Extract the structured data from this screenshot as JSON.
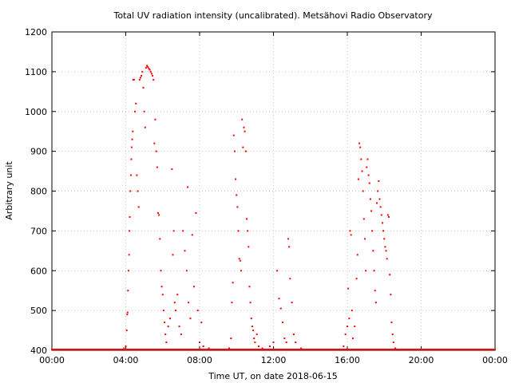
{
  "chart_data": {
    "type": "scatter",
    "title": "Total UV radiation intensity (uncalibrated). Metsähovi Radio Observatory",
    "xlabel": "Time UT, on date 2018-06-15",
    "ylabel": "Arbitrary unit",
    "xlim": [
      0,
      24
    ],
    "ylim": [
      400,
      1200
    ],
    "grid": true,
    "marker_color": "#ff0000",
    "x_ticks": [
      {
        "value": 0,
        "label": "00:00"
      },
      {
        "value": 4,
        "label": "04:00"
      },
      {
        "value": 8,
        "label": "08:00"
      },
      {
        "value": 12,
        "label": "12:00"
      },
      {
        "value": 16,
        "label": "16:00"
      },
      {
        "value": 20,
        "label": "20:00"
      },
      {
        "value": 24,
        "label": "00:00"
      }
    ],
    "y_ticks": [
      {
        "value": 400,
        "label": "400"
      },
      {
        "value": 500,
        "label": "500"
      },
      {
        "value": 600,
        "label": "600"
      },
      {
        "value": 700,
        "label": "700"
      },
      {
        "value": 800,
        "label": "800"
      },
      {
        "value": 900,
        "label": "900"
      },
      {
        "value": 1000,
        "label": "1000"
      },
      {
        "value": 1100,
        "label": "1100"
      },
      {
        "value": 1200,
        "label": "1200"
      }
    ],
    "series": [
      {
        "points": [
          [
            0.0,
            400
          ],
          [
            0.5,
            400
          ],
          [
            1.0,
            400
          ],
          [
            1.5,
            400
          ],
          [
            2.0,
            400
          ],
          [
            2.5,
            400
          ],
          [
            3.0,
            400
          ],
          [
            3.5,
            400
          ],
          [
            3.8,
            402
          ],
          [
            3.9,
            405
          ],
          [
            4.0,
            410
          ],
          [
            4.05,
            450
          ],
          [
            4.08,
            490
          ],
          [
            4.1,
            495
          ],
          [
            4.12,
            550
          ],
          [
            4.15,
            600
          ],
          [
            4.18,
            640
          ],
          [
            4.2,
            700
          ],
          [
            4.22,
            735
          ],
          [
            4.25,
            800
          ],
          [
            4.28,
            840
          ],
          [
            4.3,
            880
          ],
          [
            4.32,
            910
          ],
          [
            4.35,
            930
          ],
          [
            4.38,
            950
          ],
          [
            4.4,
            1080
          ],
          [
            4.45,
            1080
          ],
          [
            4.5,
            1000
          ],
          [
            4.55,
            1020
          ],
          [
            4.6,
            840
          ],
          [
            4.65,
            800
          ],
          [
            4.7,
            760
          ],
          [
            4.75,
            1080
          ],
          [
            4.8,
            1085
          ],
          [
            4.85,
            1090
          ],
          [
            4.9,
            1100
          ],
          [
            4.95,
            1060
          ],
          [
            5.0,
            1000
          ],
          [
            5.05,
            960
          ],
          [
            5.1,
            1110
          ],
          [
            5.15,
            1115
          ],
          [
            5.2,
            1112
          ],
          [
            5.25,
            1108
          ],
          [
            5.3,
            1105
          ],
          [
            5.35,
            1100
          ],
          [
            5.4,
            1095
          ],
          [
            5.45,
            1090
          ],
          [
            5.5,
            1080
          ],
          [
            5.55,
            920
          ],
          [
            5.6,
            980
          ],
          [
            5.65,
            900
          ],
          [
            5.7,
            860
          ],
          [
            5.75,
            745
          ],
          [
            5.8,
            740
          ],
          [
            5.85,
            680
          ],
          [
            5.9,
            600
          ],
          [
            5.95,
            560
          ],
          [
            6.0,
            540
          ],
          [
            6.05,
            500
          ],
          [
            6.1,
            470
          ],
          [
            6.15,
            440
          ],
          [
            6.2,
            420
          ],
          [
            6.3,
            460
          ],
          [
            6.4,
            480
          ],
          [
            6.5,
            855
          ],
          [
            6.55,
            640
          ],
          [
            6.6,
            700
          ],
          [
            6.65,
            520
          ],
          [
            6.7,
            500
          ],
          [
            6.8,
            540
          ],
          [
            6.9,
            460
          ],
          [
            7.0,
            440
          ],
          [
            7.1,
            700
          ],
          [
            7.2,
            650
          ],
          [
            7.3,
            600
          ],
          [
            7.35,
            810
          ],
          [
            7.4,
            520
          ],
          [
            7.5,
            480
          ],
          [
            7.6,
            690
          ],
          [
            7.7,
            560
          ],
          [
            7.8,
            745
          ],
          [
            7.9,
            500
          ],
          [
            8.0,
            420
          ],
          [
            8.1,
            470
          ],
          [
            8.2,
            410
          ],
          [
            8.5,
            405
          ],
          [
            8.8,
            402
          ],
          [
            9.0,
            400
          ],
          [
            9.5,
            400
          ],
          [
            9.6,
            405
          ],
          [
            9.7,
            430
          ],
          [
            9.75,
            520
          ],
          [
            9.8,
            570
          ],
          [
            9.85,
            940
          ],
          [
            9.9,
            900
          ],
          [
            9.95,
            830
          ],
          [
            10.0,
            790
          ],
          [
            10.05,
            760
          ],
          [
            10.1,
            700
          ],
          [
            10.15,
            630
          ],
          [
            10.2,
            625
          ],
          [
            10.25,
            600
          ],
          [
            10.3,
            980
          ],
          [
            10.35,
            910
          ],
          [
            10.4,
            960
          ],
          [
            10.45,
            950
          ],
          [
            10.5,
            900
          ],
          [
            10.55,
            730
          ],
          [
            10.6,
            700
          ],
          [
            10.65,
            660
          ],
          [
            10.7,
            560
          ],
          [
            10.75,
            520
          ],
          [
            10.8,
            480
          ],
          [
            10.85,
            460
          ],
          [
            10.9,
            450
          ],
          [
            10.95,
            430
          ],
          [
            11.0,
            420
          ],
          [
            11.1,
            440
          ],
          [
            11.2,
            410
          ],
          [
            11.4,
            405
          ],
          [
            11.6,
            402
          ],
          [
            11.8,
            410
          ],
          [
            12.0,
            420
          ],
          [
            12.2,
            600
          ],
          [
            12.3,
            530
          ],
          [
            12.4,
            505
          ],
          [
            12.5,
            470
          ],
          [
            12.6,
            430
          ],
          [
            12.7,
            420
          ],
          [
            12.8,
            680
          ],
          [
            12.85,
            660
          ],
          [
            12.9,
            580
          ],
          [
            13.0,
            520
          ],
          [
            13.1,
            440
          ],
          [
            13.2,
            420
          ],
          [
            13.5,
            405
          ],
          [
            14.0,
            400
          ],
          [
            14.5,
            400
          ],
          [
            15.0,
            400
          ],
          [
            15.5,
            402
          ],
          [
            15.8,
            410
          ],
          [
            15.9,
            440
          ],
          [
            16.0,
            460
          ],
          [
            16.05,
            555
          ],
          [
            16.1,
            480
          ],
          [
            16.15,
            700
          ],
          [
            16.2,
            690
          ],
          [
            16.25,
            500
          ],
          [
            16.3,
            430
          ],
          [
            16.4,
            460
          ],
          [
            16.5,
            580
          ],
          [
            16.55,
            640
          ],
          [
            16.6,
            830
          ],
          [
            16.65,
            920
          ],
          [
            16.7,
            910
          ],
          [
            16.75,
            880
          ],
          [
            16.8,
            850
          ],
          [
            16.85,
            800
          ],
          [
            16.9,
            730
          ],
          [
            16.95,
            680
          ],
          [
            17.0,
            600
          ],
          [
            17.05,
            860
          ],
          [
            17.1,
            880
          ],
          [
            17.15,
            840
          ],
          [
            17.2,
            820
          ],
          [
            17.25,
            780
          ],
          [
            17.3,
            750
          ],
          [
            17.35,
            700
          ],
          [
            17.4,
            650
          ],
          [
            17.45,
            600
          ],
          [
            17.5,
            550
          ],
          [
            17.55,
            520
          ],
          [
            17.6,
            770
          ],
          [
            17.65,
            800
          ],
          [
            17.7,
            825
          ],
          [
            17.75,
            780
          ],
          [
            17.8,
            760
          ],
          [
            17.85,
            740
          ],
          [
            17.9,
            720
          ],
          [
            17.95,
            700
          ],
          [
            18.0,
            680
          ],
          [
            18.05,
            660
          ],
          [
            18.1,
            650
          ],
          [
            18.15,
            630
          ],
          [
            18.2,
            740
          ],
          [
            18.25,
            735
          ],
          [
            18.3,
            590
          ],
          [
            18.35,
            540
          ],
          [
            18.4,
            470
          ],
          [
            18.45,
            440
          ],
          [
            18.5,
            420
          ],
          [
            18.6,
            405
          ],
          [
            18.8,
            402
          ],
          [
            19.0,
            400
          ],
          [
            19.5,
            400
          ],
          [
            20.0,
            400
          ],
          [
            20.5,
            400
          ],
          [
            21.0,
            400
          ],
          [
            21.5,
            400
          ],
          [
            22.0,
            400
          ],
          [
            22.5,
            400
          ],
          [
            23.0,
            400
          ],
          [
            23.5,
            400
          ],
          [
            24.0,
            400
          ]
        ]
      }
    ]
  }
}
